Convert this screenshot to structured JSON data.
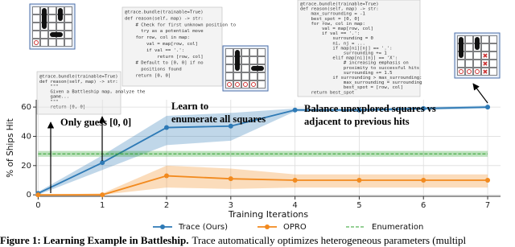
{
  "chart_data": {
    "type": "line",
    "x": [
      0,
      1,
      2,
      3,
      4,
      5,
      6,
      7
    ],
    "xlim": [
      -0.03,
      7.2
    ],
    "xticks": [
      0,
      1,
      2,
      3,
      4,
      5,
      6,
      7
    ],
    "ylim": [
      -1,
      65
    ],
    "yticks": [
      0,
      20,
      40,
      60
    ],
    "xlabel": "Training Iterations",
    "ylabel": "% of Ships Hit",
    "grid": true,
    "series": [
      {
        "name": "Trace (Ours)",
        "color": "#2e7ab6",
        "style": "solid",
        "marker": true,
        "values": [
          1,
          22,
          46,
          47,
          58,
          58,
          59,
          60
        ],
        "lower": [
          0,
          17,
          34,
          37,
          57,
          57,
          58,
          59
        ],
        "upper": [
          2,
          27,
          54,
          56,
          59,
          59,
          60,
          61
        ]
      },
      {
        "name": "OPRO",
        "color": "#f28a1e",
        "style": "solid",
        "marker": true,
        "values": [
          0,
          0,
          13,
          11,
          10,
          10,
          10,
          10
        ],
        "lower": [
          0,
          0,
          5,
          4,
          5,
          5,
          5,
          5
        ],
        "upper": [
          0,
          1,
          20,
          18,
          14,
          14,
          14,
          14
        ]
      },
      {
        "name": "Enumeration",
        "color": "#2ca02c",
        "style": "dashed",
        "marker": false,
        "values": [
          28,
          28,
          28,
          28,
          28,
          28,
          28,
          28
        ],
        "lower": [
          26,
          26,
          26,
          26,
          26,
          26,
          26,
          26
        ],
        "upper": [
          30,
          30,
          30,
          30,
          30,
          30,
          30,
          30
        ]
      }
    ],
    "annotations": [
      [
        "Only guess [0, 0]"
      ],
      [
        "Learn to",
        "enumerate all squares"
      ],
      [
        "Balance unexplored squares vs",
        "adjacent to previous hits"
      ]
    ]
  },
  "code_blocks": [
    [
      "@trace.bundle(trainable=True)",
      "def reason(self, map) -> str:",
      "    \"\"\"",
      "    Given a Battleship map, analyze the",
      "    game...",
      "    \"\"\"",
      "    return [0, 0]"
    ],
    [
      "@trace.bundle(trainable=True)",
      "def reason(self, map) -> str:",
      "    # Check for first unknown position to",
      "      try as a potential move",
      "    for row, col in map:",
      "        val = map[row, col]",
      "        if val == '.':",
      "            return [row, col]",
      "    # Default to [0, 0] if no",
      "      positions found",
      "    return [0, 0]"
    ],
    [
      "@trace.bundle(trainable=True)",
      "def reason(self, map) -> str:",
      "    max_surrounding = -1",
      "    best_spot = [0, 0]",
      "    for row, col in map:",
      "        val = map[row, col]",
      "        if val == '.':",
      "            surrounding = 0",
      "            ni, nj = ...",
      "            if map[ni][nj] == '.':",
      "                surrounding += 1",
      "            elif map[ni][nj] == 'X':",
      "                # increasing emphasis on",
      "                proximity to successful hits",
      "                surrounding += 1.5",
      "            if surrounding > max_surrounding:",
      "                max_surrounding = surrounding",
      "                best_spot = [row, col]",
      "    return best_spot"
    ]
  ],
  "caption": {
    "label": "Figure 1: Learning Example in Battleship.",
    "text": "Trace automatically optimizes heterogeneous parameters (multipl"
  }
}
